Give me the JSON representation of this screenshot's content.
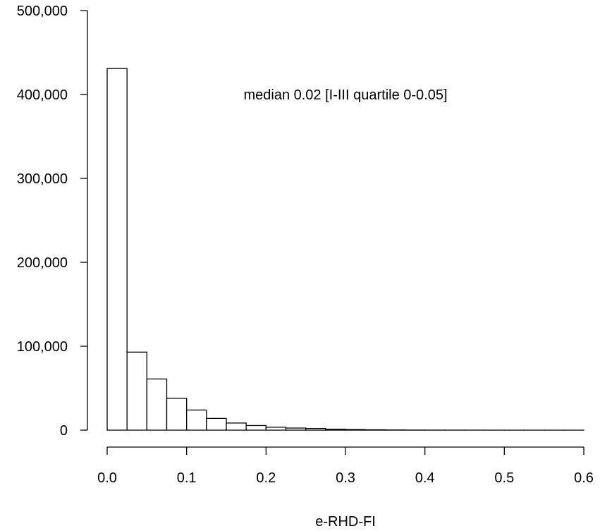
{
  "chart_data": {
    "type": "bar",
    "subtype": "histogram",
    "xlabel": "e-RHD-FI",
    "ylabel": "",
    "xlim": [
      0,
      0.6
    ],
    "ylim": [
      0,
      500000
    ],
    "x_ticks": [
      0.0,
      0.1,
      0.2,
      0.3,
      0.4,
      0.5,
      0.6
    ],
    "x_tick_labels": [
      "0.0",
      "0.1",
      "0.2",
      "0.3",
      "0.4",
      "0.5",
      "0.6"
    ],
    "y_ticks": [
      0,
      100000,
      200000,
      300000,
      400000,
      500000
    ],
    "y_tick_labels": [
      "0",
      "100,000",
      "200,000",
      "300,000",
      "400,000",
      "500,000"
    ],
    "bin_width": 0.025,
    "bin_starts": [
      0.0,
      0.025,
      0.05,
      0.075,
      0.1,
      0.125,
      0.15,
      0.175,
      0.2,
      0.225,
      0.25,
      0.275,
      0.3,
      0.325,
      0.35,
      0.375,
      0.4,
      0.425,
      0.45,
      0.475,
      0.5,
      0.525,
      0.55,
      0.575
    ],
    "values": [
      431000,
      93000,
      61000,
      38000,
      24000,
      14000,
      8500,
      5500,
      3500,
      2500,
      2000,
      1200,
      800,
      500,
      300,
      150,
      80,
      50,
      30,
      20,
      10,
      5,
      3,
      2
    ],
    "annotation": "median 0.02 [I-III quartile 0-0.05]",
    "grid": false,
    "legend": "none"
  }
}
